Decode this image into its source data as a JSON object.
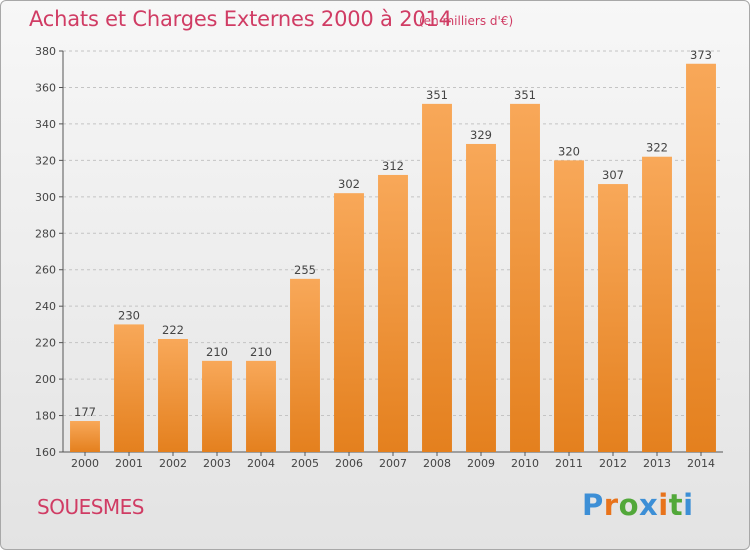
{
  "title": "Achats et Charges Externes 2000 à 2014",
  "subtitle": "(en milliers d'€)",
  "place": "SOUESMES",
  "logo": {
    "text": "Proxiti",
    "letters": [
      "P",
      "r",
      "o",
      "x",
      "i",
      "t",
      "i"
    ],
    "colors": [
      "#3d8fd6",
      "#e8731b",
      "#52a83a",
      "#3d8fd6",
      "#e8731b",
      "#52a83a",
      "#3d8fd6"
    ]
  },
  "colors": {
    "bar_light": "#f8a859",
    "bar_dark": "#e4801e",
    "accent": "#d03c64",
    "grid": "#c4c4c4"
  },
  "chart_data": {
    "type": "bar",
    "categories": [
      "2000",
      "2001",
      "2002",
      "2003",
      "2004",
      "2005",
      "2006",
      "2007",
      "2008",
      "2009",
      "2010",
      "2011",
      "2012",
      "2013",
      "2014"
    ],
    "values": [
      177,
      230,
      222,
      210,
      210,
      255,
      302,
      312,
      351,
      329,
      351,
      320,
      307,
      322,
      373
    ],
    "ylim": [
      160,
      380
    ],
    "yticks": [
      160,
      180,
      200,
      220,
      240,
      260,
      280,
      300,
      320,
      340,
      360,
      380
    ],
    "grid": true,
    "data_labels": true
  }
}
